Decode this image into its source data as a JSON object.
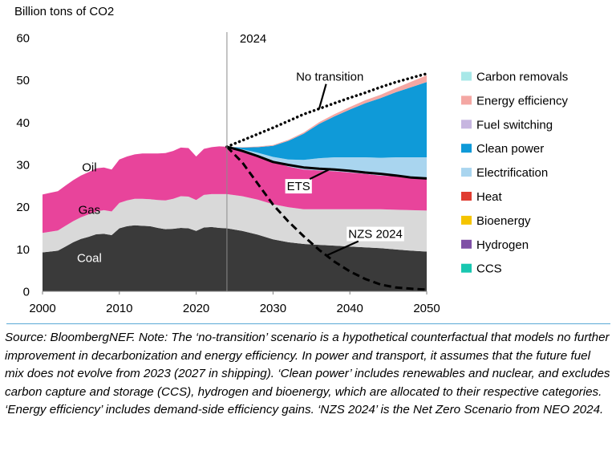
{
  "chart_data": {
    "type": "area",
    "ylabel": "Billion tons of CO2",
    "ylim": [
      0,
      60
    ],
    "xlim": [
      2000,
      2050
    ],
    "y_ticks": [
      0,
      10,
      20,
      30,
      40,
      50,
      60
    ],
    "x_ticks": [
      2000,
      2010,
      2020,
      2030,
      2040,
      2050
    ],
    "grid": false,
    "legend_position": "right",
    "historical": {
      "x": [
        2000,
        2001,
        2002,
        2003,
        2004,
        2005,
        2006,
        2007,
        2008,
        2009,
        2010,
        2011,
        2012,
        2013,
        2014,
        2015,
        2016,
        2017,
        2018,
        2019,
        2020,
        2021,
        2022,
        2023,
        2024
      ],
      "series": [
        {
          "name": "Coal",
          "color": "#3a3a3a",
          "values": [
            9.2,
            9.4,
            9.6,
            10.6,
            11.6,
            12.4,
            12.9,
            13.5,
            13.6,
            13.3,
            14.9,
            15.4,
            15.6,
            15.5,
            15.4,
            15.0,
            14.7,
            14.8,
            15.0,
            14.9,
            14.3,
            15.1,
            15.2,
            15.0,
            14.9
          ]
        },
        {
          "name": "Gas",
          "color": "#d9d9d9",
          "values": [
            4.6,
            4.7,
            4.8,
            4.9,
            5.0,
            5.1,
            5.3,
            5.4,
            5.6,
            5.6,
            6.0,
            6.1,
            6.3,
            6.4,
            6.4,
            6.6,
            6.8,
            7.1,
            7.5,
            7.5,
            7.3,
            7.7,
            7.8,
            8.0,
            8.1
          ]
        },
        {
          "name": "Oil",
          "color": "#e8449b",
          "values": [
            9.1,
            9.2,
            9.3,
            9.5,
            9.7,
            9.9,
            10.0,
            10.2,
            10.1,
            9.9,
            10.3,
            10.4,
            10.5,
            10.7,
            10.8,
            11.0,
            11.2,
            11.3,
            11.5,
            11.5,
            10.3,
            10.9,
            11.1,
            11.3,
            11.2
          ]
        }
      ]
    },
    "ets": {
      "x": [
        2024,
        2026,
        2028,
        2030,
        2032,
        2034,
        2036,
        2038,
        2040,
        2042,
        2044,
        2046,
        2048,
        2050
      ],
      "series": [
        {
          "name": "Coal",
          "values": [
            14.9,
            14.3,
            13.4,
            12.3,
            11.6,
            11.2,
            11.0,
            10.8,
            10.6,
            10.4,
            10.2,
            9.9,
            9.6,
            9.4
          ]
        },
        {
          "name": "Gas",
          "values": [
            8.1,
            8.2,
            8.3,
            8.3,
            8.3,
            8.2,
            8.4,
            8.6,
            8.8,
            9.0,
            9.2,
            9.4,
            9.6,
            9.7
          ]
        },
        {
          "name": "Oil",
          "values": [
            11.2,
            10.7,
            10.3,
            10.0,
            9.6,
            9.4,
            9.2,
            9.0,
            8.7,
            8.4,
            8.0,
            7.9,
            7.7,
            7.6
          ]
        }
      ]
    },
    "abatement": {
      "x": [
        2024,
        2026,
        2028,
        2030,
        2032,
        2034,
        2036,
        2038,
        2040,
        2042,
        2044,
        2046,
        2048,
        2050
      ],
      "series": [
        {
          "name": "CCS",
          "color": "#19c7b0",
          "values": [
            0,
            0,
            0,
            0,
            0,
            0,
            0,
            0,
            0,
            0,
            0,
            0,
            0,
            0
          ]
        },
        {
          "name": "Hydrogen",
          "color": "#7f4fa6",
          "values": [
            0,
            0,
            0,
            0,
            0,
            0,
            0,
            0,
            0,
            0,
            0,
            0,
            0,
            0
          ]
        },
        {
          "name": "Bioenergy",
          "color": "#f5c400",
          "values": [
            0,
            0,
            0,
            0,
            0,
            0,
            0,
            0,
            0,
            0,
            0,
            0,
            0,
            0
          ]
        },
        {
          "name": "Heat",
          "color": "#e03c31",
          "values": [
            0,
            0,
            0,
            0,
            0,
            0,
            0,
            0,
            0,
            0,
            0,
            0,
            0,
            0
          ]
        },
        {
          "name": "Electrification",
          "color": "#a9d5ef",
          "values": [
            0,
            0.4,
            0.8,
            1.2,
            1.7,
            2.3,
            2.9,
            3.3,
            3.6,
            3.9,
            4.2,
            4.5,
            4.8,
            5.0
          ]
        },
        {
          "name": "Clean power",
          "color": "#0f9ad8",
          "values": [
            0,
            0.4,
            1.3,
            2.6,
            4.4,
            6.2,
            8.1,
            9.7,
            11.3,
            12.8,
            14.1,
            15.4,
            16.6,
            17.8
          ]
        },
        {
          "name": "Fuel switching",
          "color": "#c7b6e0",
          "values": [
            0,
            0,
            0,
            0,
            0,
            0,
            0,
            0,
            0,
            0,
            0,
            0,
            0,
            0
          ]
        },
        {
          "name": "Energy efficiency",
          "color": "#f4a7a3",
          "values": [
            0,
            0.1,
            0.15,
            0.2,
            0.25,
            0.3,
            0.4,
            0.5,
            0.6,
            0.7,
            0.8,
            1.0,
            1.3,
            1.6
          ]
        },
        {
          "name": "Carbon removals",
          "color": "#a8e8e8",
          "values": [
            0,
            0,
            0,
            0,
            0,
            0,
            0,
            0,
            0,
            0,
            0,
            0,
            0,
            0
          ]
        }
      ]
    },
    "lines": [
      {
        "name": "ETS",
        "style": "solid",
        "x": [
          2024,
          2026,
          2028,
          2030,
          2032,
          2034,
          2036,
          2038,
          2040,
          2042,
          2044,
          2046,
          2048,
          2050
        ],
        "values": [
          34.2,
          33.2,
          32.0,
          30.6,
          29.9,
          29.3,
          29.0,
          28.8,
          28.5,
          28.1,
          27.8,
          27.4,
          26.9,
          26.7
        ]
      },
      {
        "name": "NZS 2024",
        "style": "dashed",
        "x": [
          2024,
          2026,
          2028,
          2030,
          2032,
          2034,
          2036,
          2038,
          2040,
          2042,
          2044,
          2046,
          2048,
          2050
        ],
        "values": [
          34.2,
          30.5,
          25.5,
          20.5,
          16.5,
          13.0,
          9.8,
          7.0,
          4.7,
          2.9,
          1.6,
          0.9,
          0.6,
          0.4
        ]
      },
      {
        "name": "No transition",
        "style": "dotted",
        "x": [
          2024,
          2026,
          2028,
          2030,
          2032,
          2034,
          2036,
          2038,
          2040,
          2042,
          2044,
          2046,
          2048,
          2050
        ],
        "values": [
          34.2,
          35.7,
          37.2,
          38.7,
          40.3,
          41.9,
          43.2,
          44.5,
          45.8,
          47.0,
          48.3,
          49.5,
          50.5,
          51.5
        ]
      }
    ],
    "annotations": {
      "year_marker": {
        "x": 2024,
        "label": "2024"
      },
      "area_labels": [
        {
          "text": "Oil",
          "x": 2006.1,
          "y": 28.4,
          "color": "#000000"
        },
        {
          "text": "Gas",
          "x": 2006.1,
          "y": 18.3,
          "color": "#000000"
        },
        {
          "text": "Coal",
          "x": 2006.1,
          "y": 6.9,
          "color": "#ffffff"
        }
      ],
      "line_labels": [
        {
          "text": "No transition",
          "x": 2033.0,
          "y": 49.8,
          "leader_to": {
            "x": 2036.0,
            "y": 43.2
          }
        },
        {
          "text": "ETS",
          "x": 2031.8,
          "y": 23.9,
          "leader_to": {
            "x": 2037.5,
            "y": 29.0
          }
        },
        {
          "text": "NZS 2024",
          "x": 2039.8,
          "y": 12.6,
          "leader_to": {
            "x": 2037.0,
            "y": 8.5
          }
        }
      ]
    },
    "legend": [
      {
        "name": "Carbon removals",
        "color": "#a8e8e8"
      },
      {
        "name": "Energy efficiency",
        "color": "#f4a7a3"
      },
      {
        "name": "Fuel switching",
        "color": "#c7b6e0"
      },
      {
        "name": "Clean power",
        "color": "#0f9ad8"
      },
      {
        "name": "Electrification",
        "color": "#a9d5ef"
      },
      {
        "name": "Heat",
        "color": "#e03c31"
      },
      {
        "name": "Bioenergy",
        "color": "#f5c400"
      },
      {
        "name": "Hydrogen",
        "color": "#7f4fa6"
      },
      {
        "name": "CCS",
        "color": "#19c7b0"
      }
    ]
  },
  "source_note": "Source: BloombergNEF. Note: The ‘no-transition’ scenario is a hypothetical counterfactual that models no further improvement in decarbonization and energy efficiency. In power and transport, it assumes that the future fuel mix does not evolve from 2023 (2027 in shipping). ‘Clean power’ includes renewables and nuclear, and excludes carbon capture and storage (CCS), hydrogen and bioenergy, which are allocated to their respective categories. ‘Energy efficiency’ includes demand-side efficiency gains. ‘NZS 2024’ is the Net Zero Scenario from NEO 2024."
}
